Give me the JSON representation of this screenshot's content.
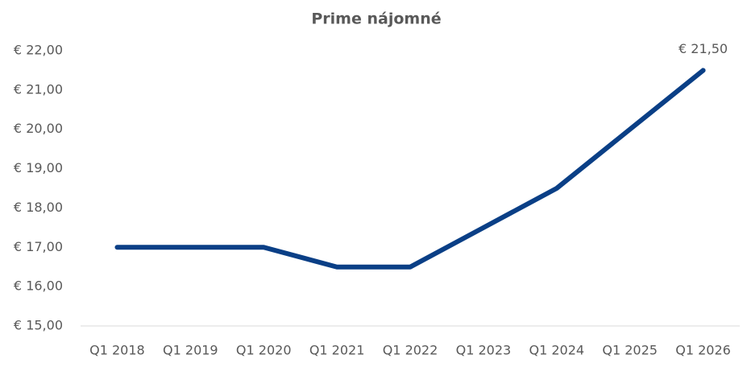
{
  "chart_data": {
    "type": "line",
    "title": "Prime nájomné",
    "categories": [
      "Q1 2018",
      "Q1 2019",
      "Q1 2020",
      "Q1 2021",
      "Q1 2022",
      "Q1 2023",
      "Q1 2024",
      "Q1 2025",
      "Q1 2026"
    ],
    "series": [
      {
        "color": "#0a3f86",
        "values": [
          17,
          17,
          17,
          16.5,
          16.5,
          17.5,
          18.5,
          20,
          21.5
        ],
        "value_labels": [
          null,
          null,
          null,
          null,
          null,
          null,
          null,
          null,
          "€ 21,50"
        ]
      }
    ],
    "ylim": [
      15,
      22
    ],
    "yticks": [
      {
        "value": 15,
        "label": "€ 15,00"
      },
      {
        "value": 16,
        "label": "€ 16,00"
      },
      {
        "value": 17,
        "label": "€ 17,00"
      },
      {
        "value": 18,
        "label": "€ 18,00"
      },
      {
        "value": 19,
        "label": "€ 19,00"
      },
      {
        "value": 20,
        "label": "€ 20,00"
      },
      {
        "value": 21,
        "label": "€ 21,00"
      },
      {
        "value": 22,
        "label": "€ 22,00"
      }
    ],
    "grid": false
  }
}
